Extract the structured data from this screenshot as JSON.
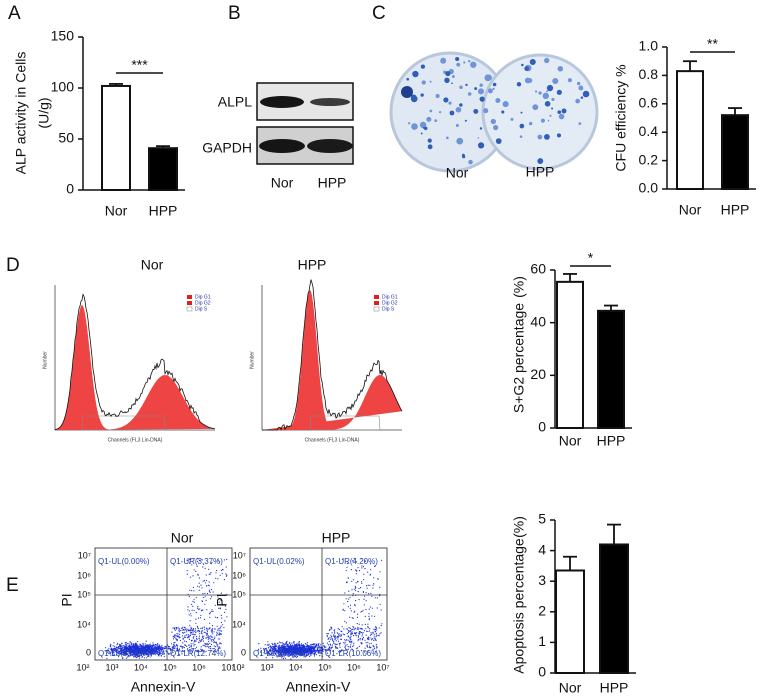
{
  "panel_labels": [
    "A",
    "B",
    "C",
    "D",
    "E"
  ],
  "chart_data": [
    {
      "type": "bar",
      "y_label": [
        "ALP activity in Cells",
        "(U/g)"
      ],
      "categories": [
        "Nor",
        "HPP"
      ],
      "values": [
        102,
        41
      ],
      "errors": [
        2,
        2
      ],
      "colors": [
        "#ffffff",
        "#000000"
      ],
      "ylim": [
        0,
        150
      ],
      "yticks": [
        0,
        50,
        100,
        150
      ],
      "annotation": "***"
    },
    {
      "type": "bar",
      "y_label": [
        "CFU efficiency %"
      ],
      "categories": [
        "Nor",
        "HPP"
      ],
      "values": [
        0.83,
        0.52
      ],
      "errors": [
        0.07,
        0.05
      ],
      "colors": [
        "#ffffff",
        "#000000"
      ],
      "ylim": [
        0,
        1
      ],
      "yticks": [
        {
          "value": 0,
          "label": "0.0"
        },
        0.2,
        0.4,
        0.6,
        0.8,
        {
          "value": 1,
          "label": "1.0"
        }
      ],
      "annotation": "**"
    },
    {
      "type": "bar",
      "y_label": [
        "S+G2 percentage",
        "(%)"
      ],
      "categories": [
        "Nor",
        "HPP"
      ],
      "values": [
        55.5,
        44.5
      ],
      "errors": [
        3,
        2
      ],
      "colors": [
        "#ffffff",
        "#000000"
      ],
      "ylim": [
        0,
        60
      ],
      "yticks": [
        0,
        20,
        40,
        60
      ],
      "annotation": "*"
    },
    {
      "type": "bar",
      "y_label": [
        "Apoptosis percentage",
        "(%)"
      ],
      "categories": [
        "Nor",
        "HPP"
      ],
      "values": [
        3.35,
        4.2
      ],
      "errors": [
        0.45,
        0.65
      ],
      "colors": [
        "#ffffff",
        "#000000"
      ],
      "ylim": [
        0,
        5
      ],
      "yticks": [
        0,
        1,
        2,
        3,
        4,
        5
      ]
    }
  ],
  "blot": {
    "bands": [
      "ALPL",
      "GAPDH"
    ],
    "lanes": [
      "Nor",
      "HPP"
    ]
  },
  "colony": {
    "plates": [
      "Nor",
      "HPP"
    ]
  },
  "cell_cycle": {
    "plots": [
      "Nor",
      "HPP"
    ],
    "legend": [
      "Dip G1",
      "Dip G2",
      "Dip S"
    ],
    "x_label": "Channels (FL3 Lin-DNA)",
    "y_label": "Number"
  },
  "apoptosis": {
    "plots": [
      {
        "title": "Nor",
        "quadrants": [
          "Q1-UL(0.00%)",
          "Q1-UR(3.37%)",
          "Q1-LL(83.89%)",
          "Q1-LR(12.74%)"
        ]
      },
      {
        "title": "HPP",
        "quadrants": [
          "Q1-UL(0.02%)",
          "Q1-UR(4.20%)",
          "Q1-LL(85.72%)",
          "Q1-LR(10.06%)"
        ]
      }
    ],
    "x_label": "Annexin-V",
    "y_label": "PI",
    "xticks": [
      "10²",
      "10³",
      "10⁴",
      "10⁵",
      "10⁶",
      "10⁷"
    ],
    "yticks": [
      "0",
      "10⁴",
      "10⁵",
      "10⁶",
      "10⁷"
    ]
  }
}
